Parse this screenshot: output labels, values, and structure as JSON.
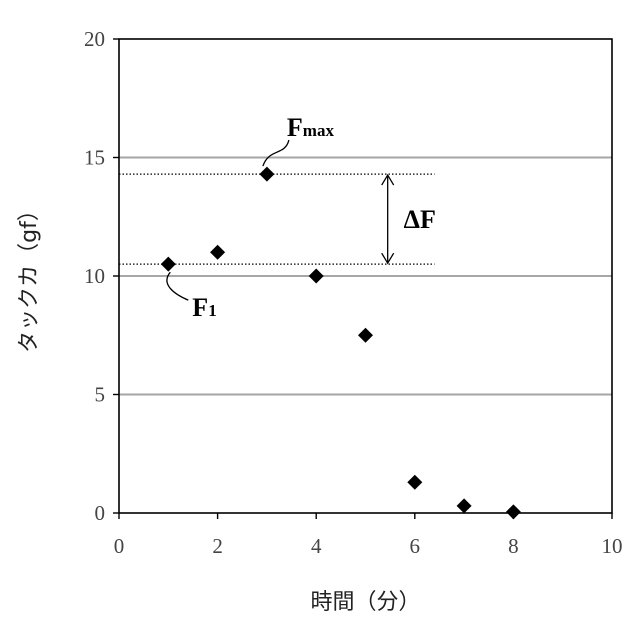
{
  "chart_data": {
    "type": "scatter",
    "title": "",
    "xlabel": "時間（分）",
    "ylabel": "タックカ（gf）",
    "xlim": [
      0,
      10
    ],
    "ylim": [
      0,
      20
    ],
    "x_ticks": [
      "0",
      "2",
      "4",
      "6",
      "8",
      "10"
    ],
    "y_ticks": [
      "0",
      "5",
      "10",
      "15",
      "20"
    ],
    "grid": "horizontal",
    "marker": "diamond",
    "marker_color": "#000000",
    "grid_color": "#a6a6a6",
    "series": [
      {
        "x": [
          1,
          2,
          3,
          4,
          5,
          6,
          7,
          8
        ],
        "y": [
          10.5,
          11.0,
          14.3,
          10.0,
          7.5,
          1.3,
          0.3,
          0.05
        ]
      }
    ],
    "annotations": {
      "fmax_main": "F",
      "fmax_sub": "max",
      "fmax_value": 14.3,
      "f1_main": "F",
      "f1_sub": "1",
      "f1_value": 10.5,
      "delta_label": "ΔF"
    }
  }
}
